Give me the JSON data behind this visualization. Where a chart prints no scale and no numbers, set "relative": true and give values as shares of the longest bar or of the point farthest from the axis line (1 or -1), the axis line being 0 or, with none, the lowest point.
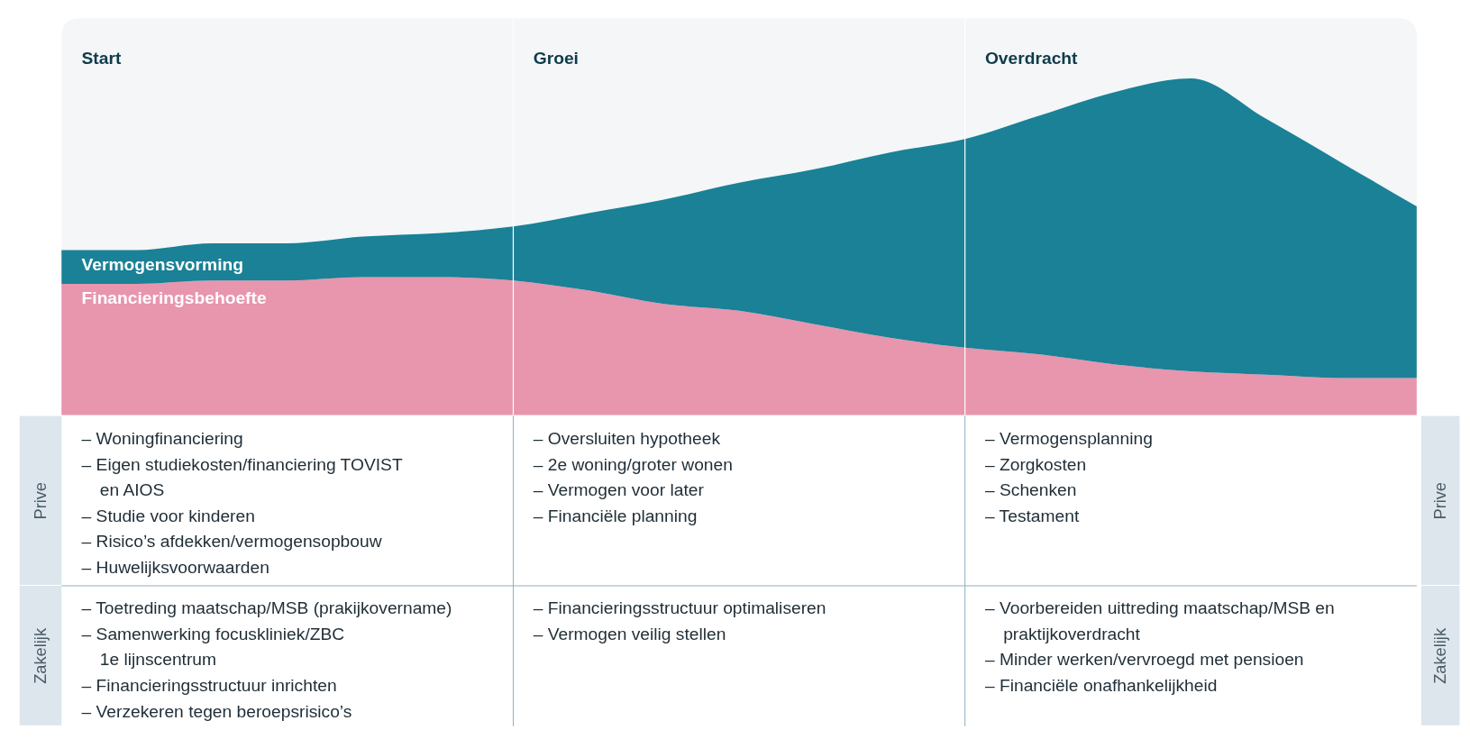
{
  "chart_data": [
    {
      "type": "area",
      "stacked": true,
      "relative": true,
      "annotations": [
        "Start",
        "Groei",
        "Overdracht"
      ],
      "categories": [
        null,
        null,
        null,
        null,
        null,
        null,
        null,
        null,
        null,
        null,
        null,
        null,
        null,
        null,
        null,
        null,
        null,
        null,
        null
      ],
      "series": [
        {
          "name": "Financieringsbehoefte",
          "color": "#e895ae",
          "values": [
            0.39,
            0.39,
            0.4,
            0.4,
            0.41,
            0.41,
            0.4,
            0.37,
            0.33,
            0.31,
            0.27,
            0.23,
            0.2,
            0.18,
            0.15,
            0.13,
            0.12,
            0.11,
            0.11
          ]
        },
        {
          "name": "Vermogensvorming",
          "color": "#1a8196",
          "values": [
            0.1,
            0.1,
            0.11,
            0.11,
            0.12,
            0.13,
            0.16,
            0.23,
            0.31,
            0.38,
            0.46,
            0.55,
            0.62,
            0.71,
            0.81,
            0.87,
            0.76,
            0.64,
            0.51
          ]
        }
      ]
    },
    {
      "type": "other",
      "y_categories": [
        "Prive",
        "Zakelijk"
      ],
      "y2_categories": [
        "Prive",
        "Zakelijk"
      ],
      "cell_labels": [
        [
          [
            "– Woningfinanciering",
            "– Eigen studiekosten/financiering TOVIST\nen AIOS",
            "– Studie voor kinderen",
            "– Risico’s afdekken/vermogensopbouw",
            "– Huwelijksvoorwaarden"
          ],
          [
            "– Oversluiten hypotheek",
            "– 2e woning/groter wonen",
            "– Vermogen voor later",
            "– Financiële planning"
          ],
          [
            "– Vermogensplanning",
            "– Zorgkosten",
            "– Schenken",
            "– Testament"
          ]
        ],
        [
          [
            "– Toetreding maatschap/MSB (prakijkovername)",
            "– Samenwerking focuskliniek/ZBC\n1e lijnscentrum",
            "– Financieringsstructuur inrichten",
            "– Verzekeren tegen beroepsrisico’s"
          ],
          [
            "– Financieringsstructuur optimaliseren",
            "– Vermogen veilig stellen"
          ],
          [
            "– Voorbereiden uittreding maatschap/MSB en\npraktijkoverdracht",
            "– Minder werken/vervroegd met pensioen",
            "– Financiële onafhankelijkheid"
          ]
        ]
      ]
    }
  ]
}
